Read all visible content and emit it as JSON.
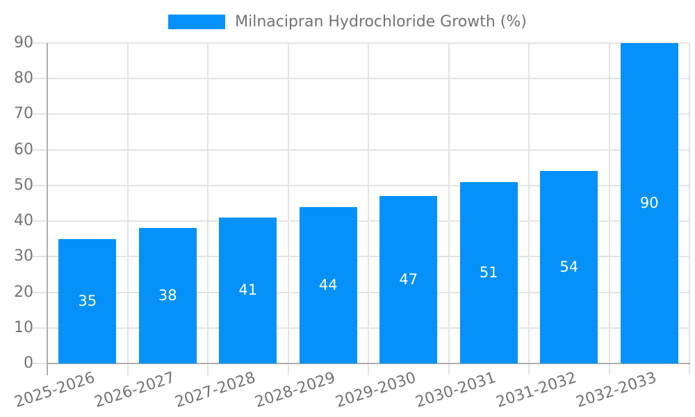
{
  "chart_data": {
    "type": "bar",
    "title": "Milnacipran Hydrochloride Growth (%)",
    "legend_position": "top-center",
    "categories": [
      "2025-2026",
      "2026-2027",
      "2027-2028",
      "2028-2029",
      "2029-2030",
      "2030-2031",
      "2031-2032",
      "2032-2033"
    ],
    "series": [
      {
        "name": "Milnacipran Hydrochloride Growth (%)",
        "values": [
          35,
          38,
          41,
          44,
          47,
          51,
          54,
          90
        ]
      }
    ],
    "xlabel": "",
    "ylabel": "",
    "ylim": [
      0,
      90
    ],
    "yticks": [
      0,
      10,
      20,
      30,
      40,
      50,
      60,
      70,
      80,
      90
    ],
    "grid": true,
    "x_label_rotation_deg": -18,
    "colors": {
      "bar": "#0591F8",
      "grid": "#E3E3E3",
      "axis": "#ADADAD",
      "text": "#737373",
      "bar_label": "#FFFFFF",
      "background": "#FFFFFF"
    }
  }
}
